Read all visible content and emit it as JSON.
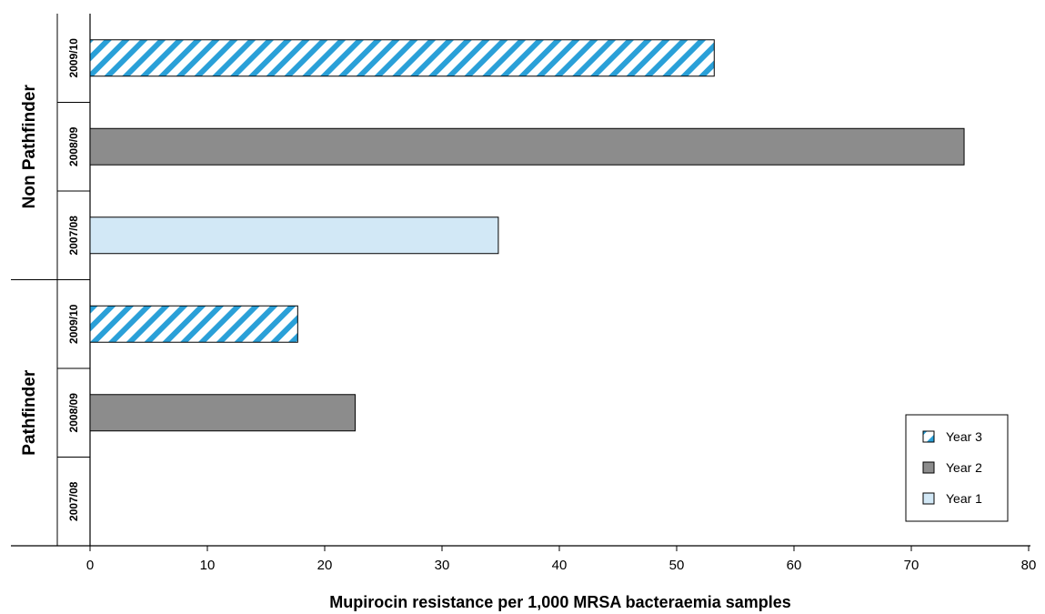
{
  "chart_data": {
    "type": "bar",
    "orientation": "horizontal",
    "title": "",
    "top_text_fragment": "",
    "xlabel": "Mupirocin resistance per 1,000 MRSA bacteraemia samples",
    "xlim": [
      0,
      80
    ],
    "xticks": [
      "0",
      "10",
      "20",
      "30",
      "40",
      "50",
      "60",
      "70",
      "80"
    ],
    "grid": false,
    "legend_position": "bottom-right",
    "groups": [
      {
        "name": "Non Pathfinder",
        "bars": [
          {
            "category": "2009/10",
            "series": "Year 3",
            "value": 53.2
          },
          {
            "category": "2008/09",
            "series": "Year 2",
            "value": 74.5
          },
          {
            "category": "2007/08",
            "series": "Year 1",
            "value": 34.8
          }
        ]
      },
      {
        "name": "Pathfinder",
        "bars": [
          {
            "category": "2009/10",
            "series": "Year 3",
            "value": 17.7
          },
          {
            "category": "2008/09",
            "series": "Year 2",
            "value": 22.6
          },
          {
            "category": "2007/08",
            "series": "Year 1",
            "value": 0
          }
        ]
      }
    ],
    "series": [
      {
        "name": "Year 3",
        "fill": "hatched",
        "color": "#2aa0d8"
      },
      {
        "name": "Year 2",
        "fill": "solid",
        "color": "#8c8c8c"
      },
      {
        "name": "Year 1",
        "fill": "solid",
        "color": "#d2e8f6"
      }
    ]
  }
}
